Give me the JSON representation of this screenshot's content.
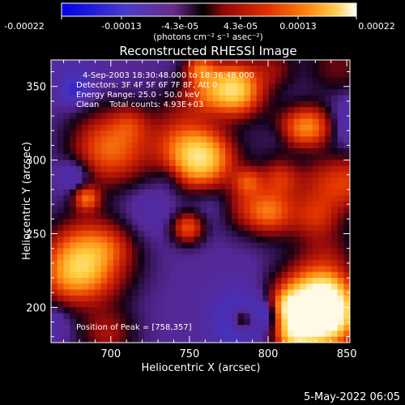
{
  "chart_data": {
    "type": "heatmap",
    "title": "Reconstructed RHESSI Image",
    "xlabel": "Heliocentric X (arcsec)",
    "ylabel": "Heliocentric Y (arcsec)",
    "xlim": [
      662,
      852
    ],
    "ylim": [
      176,
      368
    ],
    "x_ticks": [
      "700",
      "750",
      "800",
      "850"
    ],
    "x_tick_values": [
      700,
      750,
      800,
      850
    ],
    "y_ticks": [
      "200",
      "250",
      "300",
      "350"
    ],
    "y_tick_values": [
      200,
      250,
      300,
      350
    ],
    "colorbar": {
      "ticks": [
        "-0.00022",
        "-0.00013",
        "-4.3e-05",
        "4.3e-05",
        "0.00013",
        "0.00022"
      ],
      "range": [
        -0.00022,
        0.00022
      ],
      "unit_text": "(photons cm⁻² s⁻¹ asec⁻²)",
      "colors": [
        "#0000e6",
        "#5a2d9a",
        "#000000",
        "#b01010",
        "#ff5a00",
        "#ffc040",
        "#ffffff"
      ]
    },
    "annotations": [
      "4-Sep-2003 18:30:48.000 to 18:36:48.000",
      "Detectors: 3F 4F 5F 6F 7F 8F, Att 0",
      "Energy Range: 25.0 - 50.0 keV",
      "Clean    Total counts: 4.93E+03"
    ],
    "peak_text": "Position of Peak = [758,357]",
    "peak_position": [
      758,
      357
    ],
    "total_counts": "4.93E+03",
    "grid": false
  },
  "footer": {
    "timestamp": "5-May-2022 06:05"
  }
}
